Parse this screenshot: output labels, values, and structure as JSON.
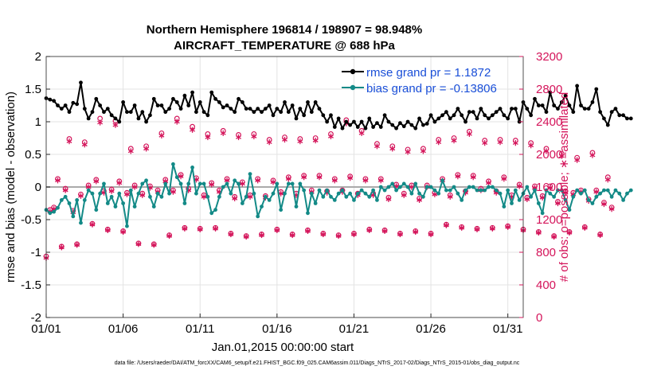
{
  "chart_data": {
    "type": "line",
    "title": "Northern Hemisphere 196814 / 198907 = 98.948%",
    "subtitle": "AIRCRAFT_TEMPERATURE @ 688 hPa",
    "xlabel": "Jan.01,2015 00:00:00 start",
    "ylabel_left": "rmse and bias (model - observation)",
    "ylabel_right": "# of obs: o=possible; ∗=assimilated",
    "x_ticks": [
      "01/01",
      "01/06",
      "01/11",
      "01/16",
      "01/21",
      "01/26",
      "01/31"
    ],
    "x_tick_days": [
      0,
      5,
      10,
      15,
      20,
      25,
      30
    ],
    "xlim_days": [
      0,
      31
    ],
    "ylim_left": [
      -2,
      2
    ],
    "y_ticks_left": [
      "-2",
      "-1.5",
      "-1",
      "-0.5",
      "0",
      "0.5",
      "1",
      "1.5",
      "2"
    ],
    "ylim_right": [
      0,
      3200
    ],
    "y_ticks_right": [
      "0",
      "400",
      "800",
      "1200",
      "1600",
      "2000",
      "2400",
      "2800",
      "3200"
    ],
    "grid": true,
    "legend_location": "top-right",
    "legend": [
      "rmse grand pr = 1.1872",
      "bias grand pr = -0.13806"
    ],
    "colors": {
      "rmse": "#000000",
      "bias": "#138a87",
      "obs": "#d4145a",
      "zero_line": "#aaaaaa",
      "legend_text": "#1a4fd8"
    },
    "series": [
      {
        "name": "rmse",
        "axis": "left",
        "x_start_day": 0.0,
        "x_step_day": 0.25,
        "values": [
          1.36,
          1.34,
          1.32,
          1.25,
          1.2,
          1.25,
          1.15,
          1.29,
          1.27,
          1.6,
          1.2,
          1.05,
          1.15,
          1.35,
          1.25,
          1.15,
          1.2,
          1.1,
          1.05,
          1.0,
          1.3,
          1.15,
          1.15,
          1.25,
          1.05,
          1.15,
          1.0,
          1.1,
          1.35,
          1.25,
          1.25,
          1.15,
          1.2,
          1.35,
          1.3,
          1.2,
          1.4,
          1.25,
          1.45,
          1.15,
          1.3,
          1.15,
          1.1,
          1.45,
          1.35,
          1.3,
          1.22,
          1.25,
          1.2,
          1.15,
          1.35,
          1.3,
          1.2,
          1.2,
          1.15,
          1.2,
          1.15,
          1.2,
          1.25,
          1.1,
          1.2,
          1.15,
          1.3,
          1.15,
          1.25,
          1.05,
          1.2,
          1.1,
          1.3,
          1.15,
          1.3,
          1.2,
          1.1,
          1.0,
          1.1,
          0.92,
          1.05,
          0.9,
          1.0,
          0.95,
          1.0,
          0.92,
          1.0,
          0.9,
          1.05,
          0.92,
          0.98,
          0.92,
          1.1,
          1.0,
          0.95,
          0.9,
          0.98,
          0.93,
          1.0,
          0.95,
          0.9,
          1.05,
          0.95,
          0.97,
          1.1,
          1.0,
          1.05,
          1.1,
          1.15,
          1.05,
          1.1,
          1.2,
          1.1,
          1.0,
          1.15,
          1.15,
          1.05,
          1.2,
          1.1,
          1.05,
          1.1,
          1.15,
          1.2,
          1.1,
          1.05,
          1.2,
          1.2,
          1.0,
          1.3,
          1.2,
          1.1,
          1.35,
          1.25,
          1.25,
          1.15,
          1.45,
          1.25,
          1.2,
          1.3,
          1.4,
          1.25,
          1.15,
          1.55,
          1.25,
          1.2,
          1.2,
          1.3,
          1.5,
          1.15,
          1.05,
          0.95,
          1.15,
          1.2,
          1.1,
          1.1,
          1.05,
          1.05
        ]
      },
      {
        "name": "bias",
        "axis": "left",
        "x_start_day": 0.0,
        "x_step_day": 0.25,
        "values": [
          -0.35,
          -0.4,
          -0.38,
          -0.32,
          -0.2,
          -0.15,
          -0.25,
          -0.45,
          -0.2,
          -0.55,
          -0.2,
          -0.05,
          -0.1,
          -0.35,
          -0.1,
          0.05,
          -0.25,
          -0.15,
          -0.3,
          -0.1,
          -0.25,
          -0.6,
          -0.05,
          -0.3,
          -0.1,
          0.05,
          0.1,
          -0.15,
          -0.3,
          -0.1,
          -0.15,
          0.05,
          -0.1,
          0.35,
          0.15,
          0.05,
          -0.25,
          0.05,
          0.3,
          -0.1,
          0.05,
          0.05,
          -0.15,
          -0.4,
          -0.35,
          -0.15,
          0.0,
          0.05,
          -0.1,
          0.1,
          0.05,
          -0.25,
          -0.15,
          0.2,
          -0.1,
          -0.45,
          -0.3,
          -0.15,
          -0.2,
          -0.1,
          0.05,
          -0.35,
          -0.1,
          0.05,
          0.05,
          -0.3,
          0.05,
          -0.05,
          -0.4,
          -0.1,
          -0.25,
          -0.05,
          -0.15,
          -0.05,
          -0.15,
          -0.2,
          -0.1,
          -0.05,
          -0.15,
          -0.1,
          -0.2,
          -0.1,
          -0.05,
          -0.1,
          -0.15,
          -0.05,
          -0.2,
          0.0,
          -0.05,
          0.0,
          0.05,
          -0.05,
          0.0,
          0.05,
          0.0,
          -0.1,
          0.05,
          -0.1,
          -0.15,
          0.0,
          0.0,
          -0.05,
          -0.1,
          0.1,
          -0.05,
          -0.05,
          0.0,
          -0.1,
          -0.2,
          -0.05,
          0.0,
          0.0,
          -0.05,
          -0.05,
          -0.05,
          0.0,
          0.0,
          -0.05,
          -0.1,
          -0.3,
          -0.05,
          -0.25,
          -0.05,
          -0.2,
          -0.1,
          0.0,
          -0.15,
          -0.05,
          -0.25,
          -0.4,
          -0.05,
          -0.1,
          -0.15,
          -0.05,
          -0.05,
          -0.2,
          -0.35,
          -0.15,
          -0.05,
          -0.1,
          -0.05,
          -0.2,
          -0.25,
          -0.15,
          -0.1,
          -0.05,
          -0.05,
          -0.15,
          -0.05,
          -0.1,
          -0.2,
          -0.1,
          -0.05
        ]
      },
      {
        "name": "obs possible",
        "axis": "right",
        "marker": "o",
        "x_start_day": 0.0,
        "x_step_day": 0.25,
        "values": [
          750,
          1320,
          1350,
          1700,
          870,
          1580,
          2190,
          1310,
          900,
          1510,
          2150,
          1620,
          1150,
          1690,
          2440,
          1550,
          1080,
          1570,
          2410,
          1670,
          1060,
          1530,
          2070,
          1620,
          910,
          1520,
          2100,
          1610,
          900,
          1560,
          2260,
          1690,
          1010,
          1560,
          2440,
          1750,
          1100,
          1580,
          2340,
          1710,
          1090,
          1500,
          2250,
          1650,
          1100,
          1560,
          2290,
          1700,
          1030,
          1480,
          2240,
          1660,
          1000,
          1500,
          2250,
          1700,
          1020,
          1490,
          2180,
          1680,
          1080,
          1540,
          2210,
          1720,
          1020,
          1520,
          2190,
          1740,
          1070,
          1560,
          2200,
          1740,
          1030,
          1550,
          2250,
          1700,
          1010,
          1560,
          2420,
          1730,
          1030,
          1520,
          2290,
          1700,
          1080,
          1520,
          2130,
          1700,
          1070,
          1470,
          2100,
          1630,
          1030,
          1520,
          2060,
          1620,
          1060,
          1460,
          2070,
          1620,
          1030,
          1530,
          2180,
          1700,
          1140,
          1500,
          2200,
          1750,
          1110,
          1550,
          2280,
          1740,
          1090,
          1580,
          2170,
          1670,
          1100,
          1550,
          2180,
          1720,
          1120,
          1500,
          2170,
          1630,
          1080,
          1470,
          2140,
          1610,
          1050,
          1490,
          2070,
          1610,
          1000,
          1420,
          2010,
          1550,
          1050,
          1530,
          1960,
          1560,
          1110,
          1450,
          2020,
          1560,
          1020,
          1410,
          1720,
          1350
        ]
      },
      {
        "name": "obs assimilated",
        "axis": "right",
        "marker": "*",
        "x_start_day": 0.0,
        "x_step_day": 0.25,
        "values": [
          730,
          1300,
          1330,
          1680,
          860,
          1560,
          2160,
          1290,
          890,
          1490,
          2120,
          1600,
          1140,
          1670,
          2390,
          1530,
          1070,
          1550,
          2360,
          1650,
          1050,
          1510,
          2040,
          1600,
          900,
          1500,
          2070,
          1590,
          890,
          1540,
          2230,
          1670,
          1000,
          1540,
          2400,
          1730,
          1090,
          1560,
          2300,
          1690,
          1080,
          1480,
          2210,
          1630,
          1090,
          1540,
          2260,
          1680,
          1020,
          1460,
          2210,
          1640,
          990,
          1480,
          2220,
          1680,
          1010,
          1470,
          2150,
          1660,
          1070,
          1520,
          2180,
          1700,
          1010,
          1500,
          2160,
          1720,
          1060,
          1540,
          2170,
          1720,
          1020,
          1530,
          2220,
          1680,
          1000,
          1540,
          2380,
          1710,
          1020,
          1500,
          2260,
          1680,
          1070,
          1500,
          2100,
          1680,
          1060,
          1450,
          2070,
          1610,
          1020,
          1500,
          2030,
          1600,
          1050,
          1440,
          2040,
          1600,
          1020,
          1510,
          2150,
          1680,
          1130,
          1480,
          2170,
          1730,
          1100,
          1530,
          2250,
          1720,
          1080,
          1560,
          2140,
          1650,
          1090,
          1530,
          2150,
          1700,
          1110,
          1480,
          2140,
          1610,
          1070,
          1450,
          2110,
          1590,
          1040,
          1470,
          2040,
          1590,
          990,
          1400,
          1980,
          1530,
          1040,
          1510,
          1930,
          1540,
          1100,
          1430,
          1990,
          1540,
          1010,
          1390,
          1690,
          1330
        ]
      }
    ]
  },
  "footer": {
    "datafile": "data file: /Users/raeder/DAI/ATM_forcXX/CAM6_setup/f.e21.FHIST_BGC.f09_025.CAM6assim.011/Diags_NTrS_2017-02/Diags_NTrS_2015-01/obs_diag_output.nc"
  }
}
